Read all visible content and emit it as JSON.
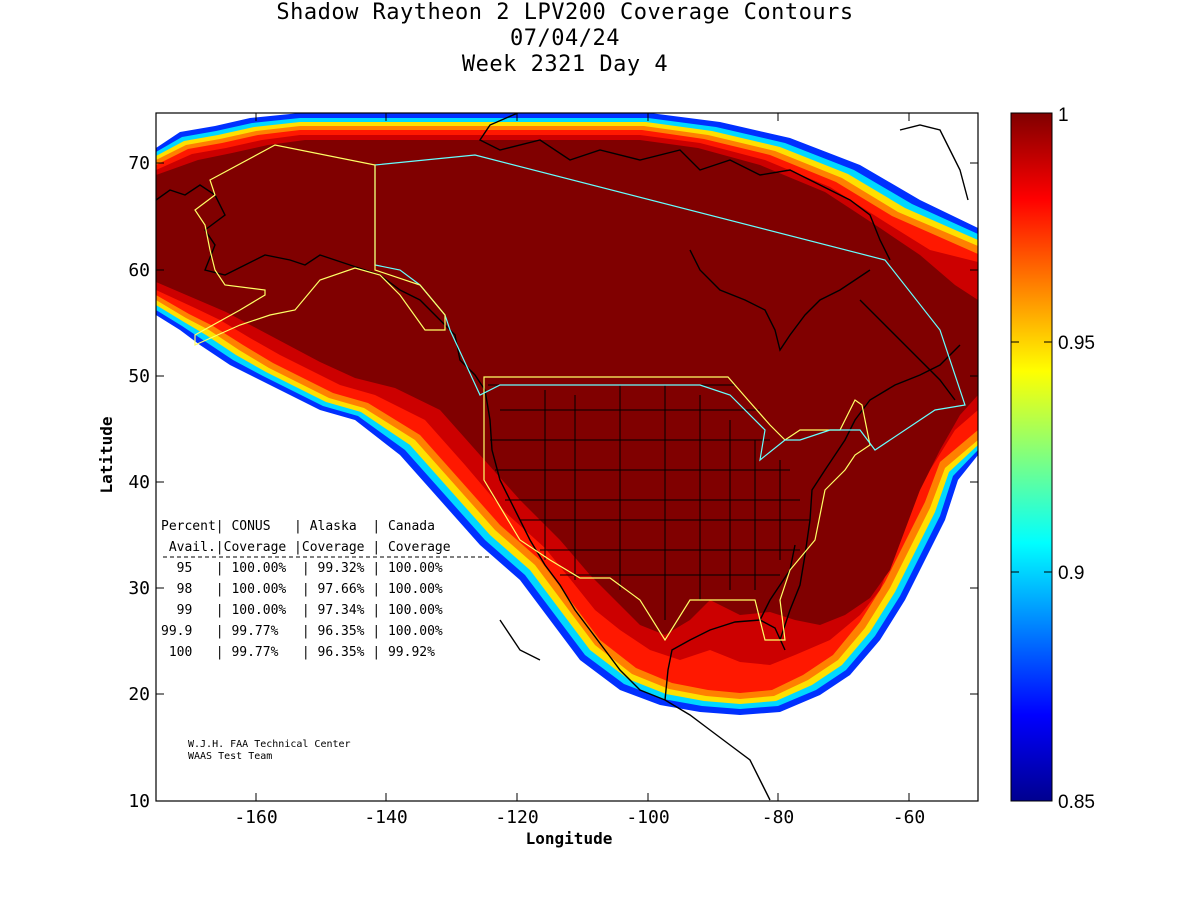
{
  "titles": {
    "line1": "Shadow Raytheon 2 LPV200 Coverage Contours",
    "line2": "07/04/24",
    "line3": "Week 2321 Day 4"
  },
  "axes": {
    "xlabel": "Longitude",
    "ylabel": "Latitude",
    "xticks": [
      "-160",
      "-140",
      "-120",
      "-100",
      "-80",
      "-60"
    ],
    "yticks": [
      "10",
      "20",
      "30",
      "40",
      "50",
      "60",
      "70"
    ],
    "xlim": [
      -175,
      -50
    ],
    "ylim": [
      10,
      75
    ]
  },
  "colorbar": {
    "labels": [
      "1",
      "0.95",
      "0.9",
      "0.85"
    ],
    "range": [
      0.85,
      1
    ],
    "colormap": "jet"
  },
  "table": {
    "header1": "Percent| CONUS   | Alaska  | Canada",
    "header2": " Avail.|Coverage |Coverage | Coverage",
    "rows": [
      "  95   | 100.00%  | 99.32% | 100.00%",
      "  98   | 100.00%  | 97.66% | 100.00%",
      "  99   | 100.00%  | 97.34% | 100.00%",
      "99.9   | 99.77%   | 96.35% | 100.00%",
      " 100   | 99.77%   | 96.35% | 99.92%"
    ]
  },
  "credit": {
    "line1": "W.J.H. FAA Technical Center",
    "line2": "WAAS Test Team"
  },
  "colors": {
    "deep_red": "#800000",
    "red": "#d40000",
    "bright_red": "#ff1a00",
    "orange": "#ff7f00",
    "yellow": "#ffd800",
    "cyan": "#00e0ff",
    "blue": "#0040ff",
    "navy": "#00008f"
  }
}
